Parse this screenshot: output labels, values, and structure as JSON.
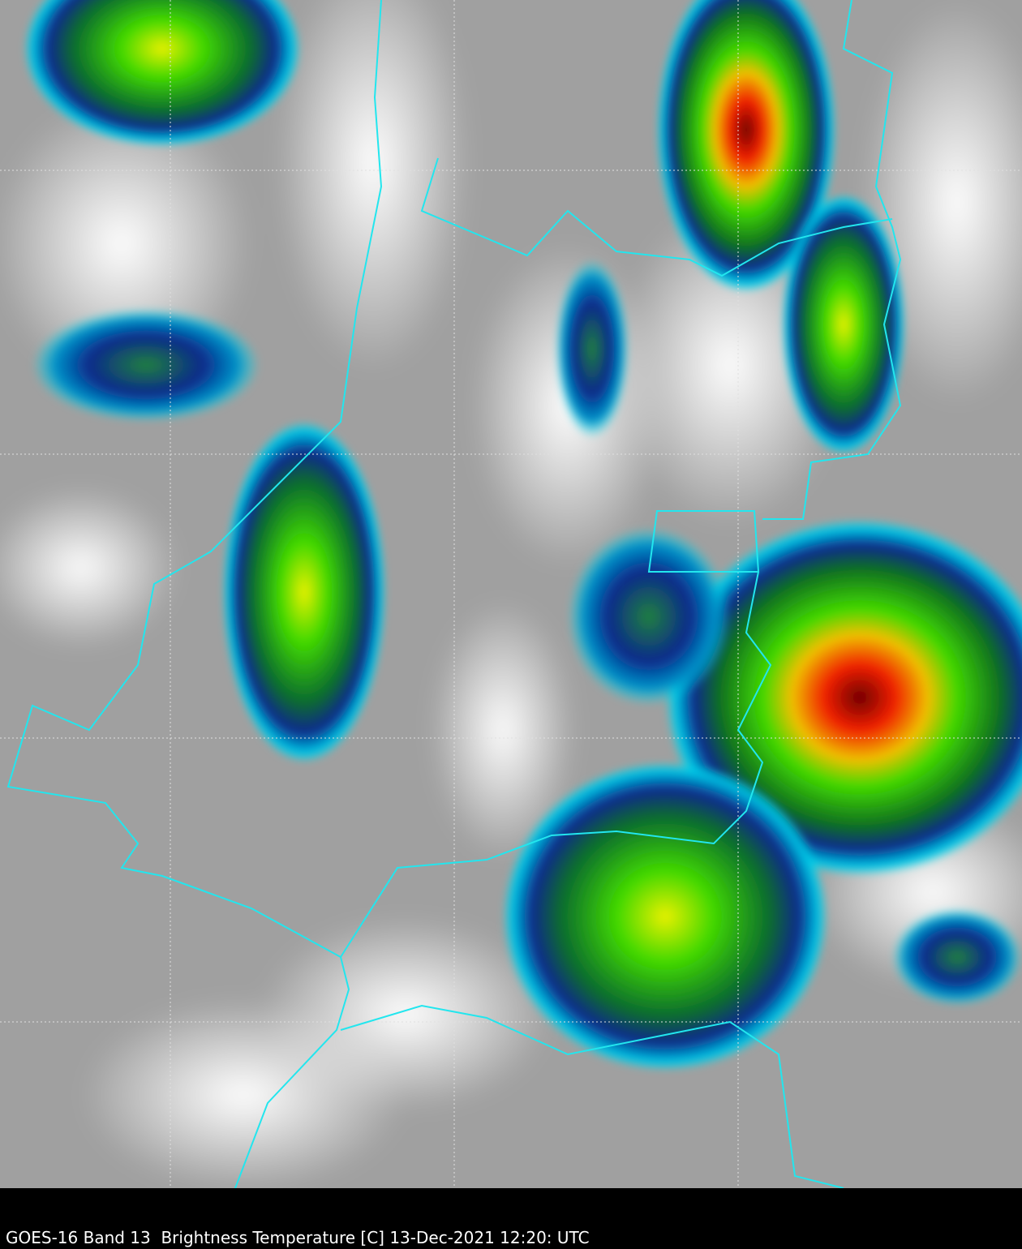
{
  "caption": "GOES-16 Band 13  Brightness Temperature [C] 13-Dec-2021 12:20: UTC",
  "colors": {
    "clear_background": "#9a9a9a",
    "cold_cloud": "#f4f4f4",
    "cyan": "#00e5f0",
    "blue": "#0a2a8a",
    "green": "#30d000",
    "yellow": "#f0f000",
    "red": "#f02000",
    "dark_red": "#700000",
    "borders": "#22e6ee",
    "gridlines": "#dddddd"
  }
}
